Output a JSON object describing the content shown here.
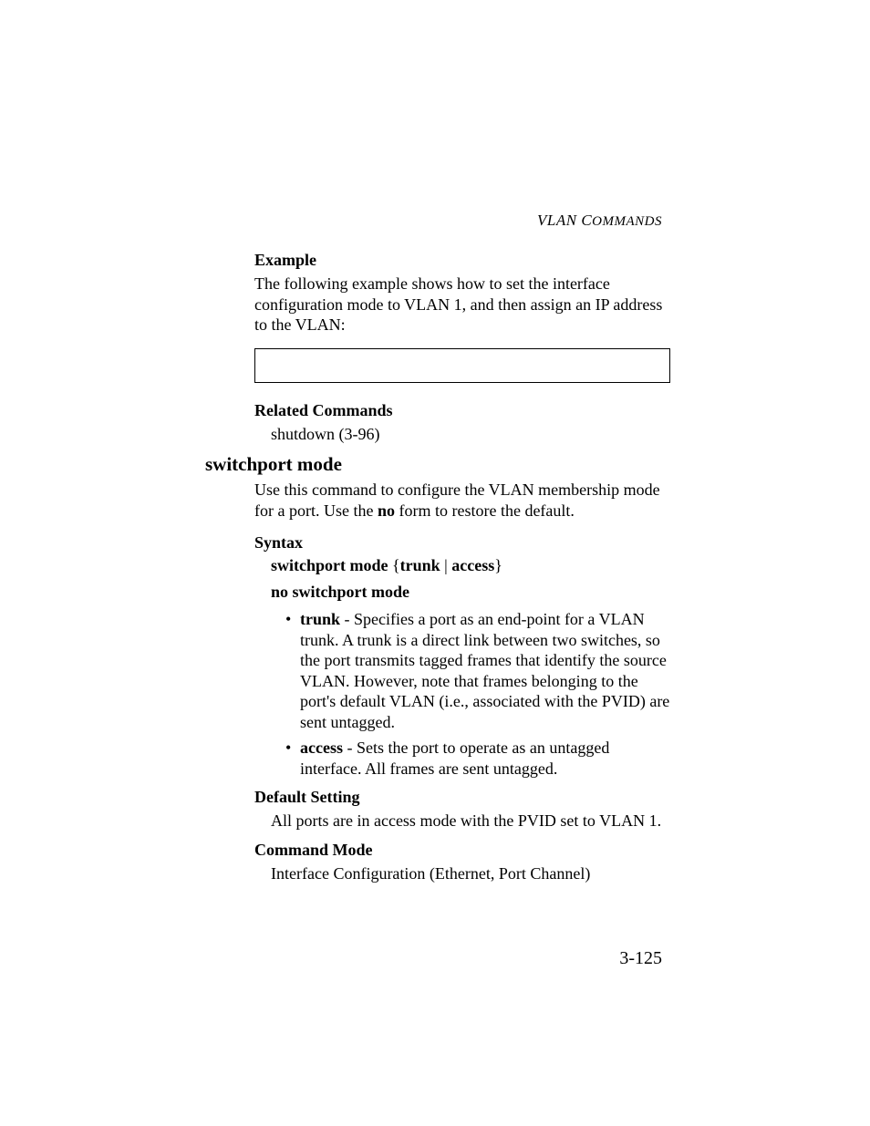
{
  "page": {
    "running_header_prefix": "VLAN C",
    "running_header_suffix": "OMMANDS",
    "page_number": "3-125",
    "text_color": "#000000",
    "background_color": "#ffffff",
    "body_fontsize_pt": 18,
    "heading_fontsize_pt": 21
  },
  "sec1": {
    "h_example": "Example",
    "p_example": "The following example shows how to set the interface configuration mode to VLAN 1, and then assign an IP address to the VLAN:",
    "h_related": "Related Commands",
    "p_related": "shutdown (3-96)"
  },
  "sec2": {
    "title": "switchport mode",
    "intro_a": "Use this command to configure the VLAN membership mode for a port. Use the ",
    "intro_bold": "no",
    "intro_b": " form to restore the default.",
    "h_syntax": "Syntax",
    "syntax1_a": "switchport mode",
    "syntax1_brace_open": " {",
    "syntax1_b": "trunk",
    "syntax1_pipe": " | ",
    "syntax1_c": "access",
    "syntax1_brace_close": "}",
    "syntax2": "no switchport mode",
    "bullet1_term": "trunk",
    "bullet1_rest": " - Specifies a port as an end-point for a VLAN trunk. A trunk is a direct link between two switches, so the port transmits tagged frames that identify the source VLAN. However, note that frames belonging to the port's default VLAN (i.e., associated with the PVID) are sent untagged.",
    "bullet2_term": "access",
    "bullet2_rest": " - Sets the port to operate as an untagged interface. All frames are sent untagged.",
    "h_default": "Default Setting",
    "p_default": "All ports are in access mode with the PVID set to VLAN 1.",
    "h_cmdmode": "Command Mode",
    "p_cmdmode": "Interface Configuration (Ethernet, Port Channel)"
  }
}
